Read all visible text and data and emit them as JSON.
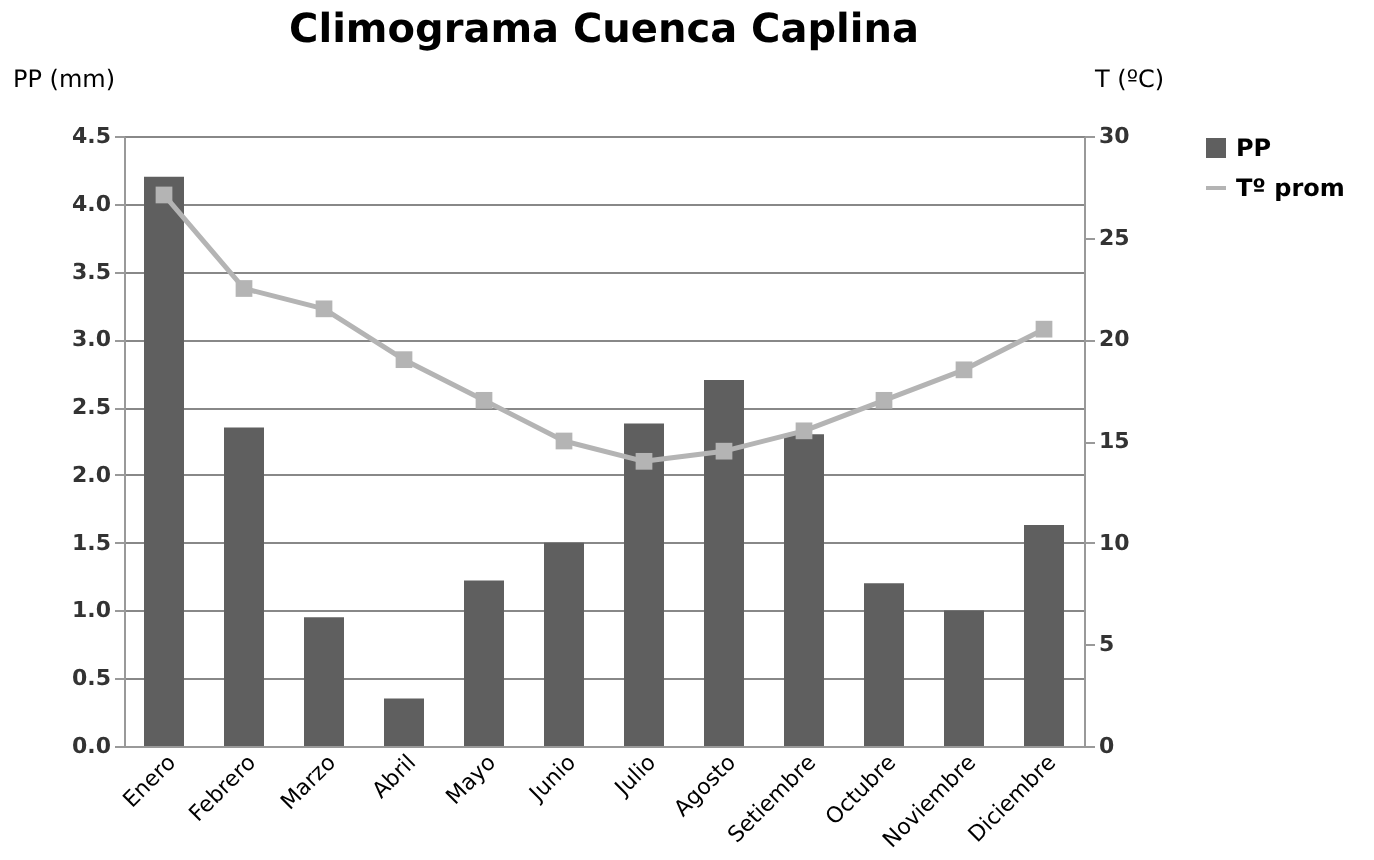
{
  "chart_data": {
    "type": "bar",
    "title": "Climograma Cuenca Caplina",
    "ylabel": "PP (mm)",
    "y2label": "T (ºC)",
    "categories": [
      "Enero",
      "Febrero",
      "Marzo",
      "Abril",
      "Mayo",
      "Junio",
      "Julio",
      "Agosto",
      "Setiembre",
      "Octubre",
      "Noviembre",
      "Diciembre"
    ],
    "series": [
      {
        "name": "PP",
        "color": "#5f5f5f",
        "values": [
          4.2,
          2.35,
          0.95,
          0.35,
          1.22,
          1.5,
          2.38,
          2.7,
          2.3,
          1.2,
          1.0,
          1.63
        ]
      },
      {
        "name": "Tº prom",
        "type": "line",
        "axis": "y2",
        "color": "#b4b4b4",
        "marker": "square",
        "values": [
          27.1,
          22.5,
          21.5,
          19,
          17,
          15,
          14,
          14.5,
          15.5,
          17,
          18.5,
          20.5
        ]
      }
    ],
    "ylim": [
      0,
      4.5
    ],
    "yticks": [
      {
        "value": 0,
        "label": "0.0"
      },
      0.5,
      {
        "value": 1,
        "label": "1.0"
      },
      1.5,
      {
        "value": 2,
        "label": "2.0"
      },
      2.5,
      {
        "value": 3,
        "label": "3.0"
      },
      3.5,
      {
        "value": 4,
        "label": "4.0"
      },
      4.5
    ],
    "y2lim": [
      0,
      30
    ],
    "y2ticks": [
      0,
      5,
      10,
      15,
      20,
      25,
      30
    ],
    "grid": "y",
    "legend": "right"
  }
}
